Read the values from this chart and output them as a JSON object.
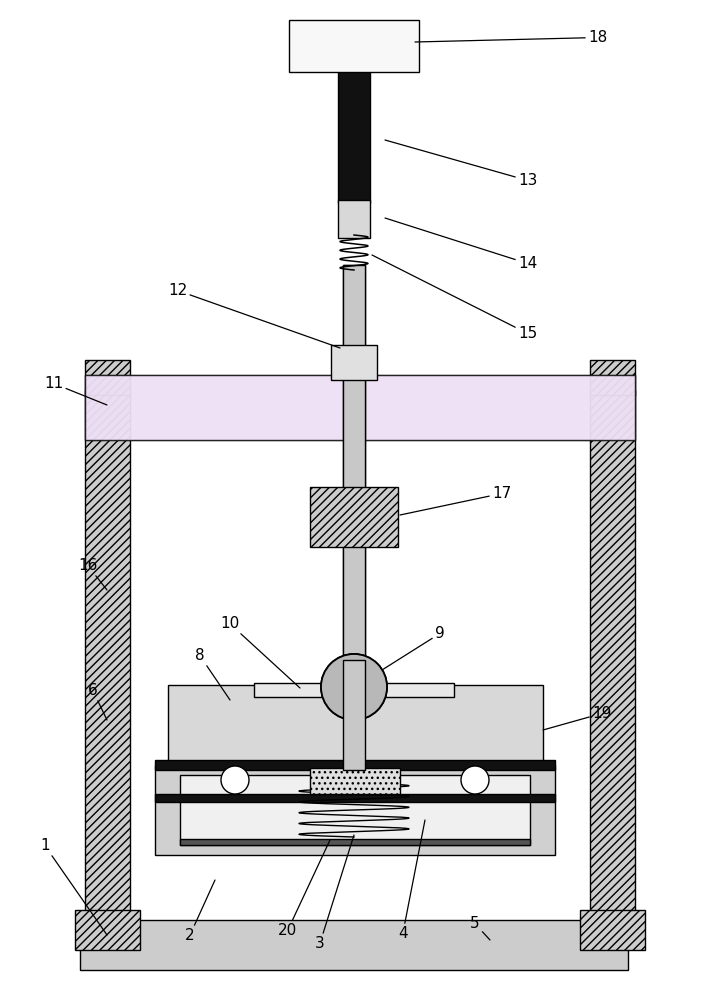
{
  "bg": "#ffffff",
  "lc": "#000000",
  "gray1": "#c8c8c8",
  "gray2": "#d8d8d8",
  "gray3": "#e0e0e0",
  "pink_beam": "#f0e8f5",
  "pink_beam2": "#e8ddf0",
  "white": "#ffffff",
  "black": "#111111",
  "shaft_color": "#c0c0c0",
  "col_color": "#b8b8b8"
}
